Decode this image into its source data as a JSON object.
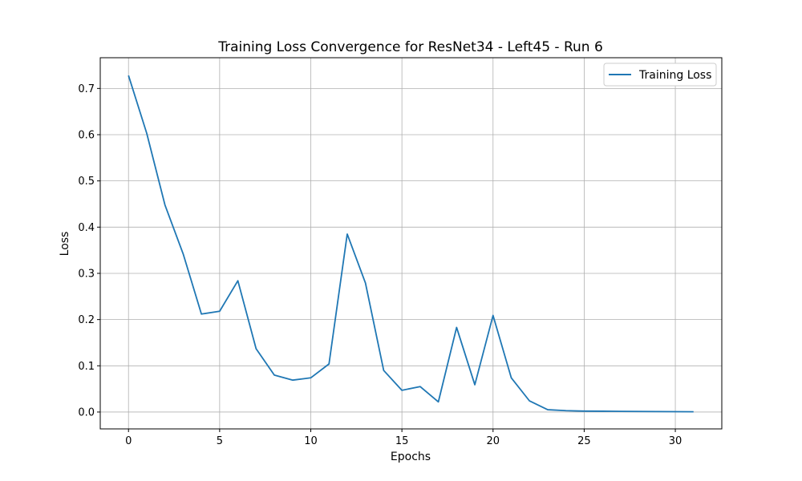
{
  "chart_data": {
    "type": "line",
    "title": "Training Loss Convergence for ResNet34 - Left45 - Run 6",
    "xlabel": "Epochs",
    "ylabel": "Loss",
    "xlim": [
      -1.55,
      32.55
    ],
    "ylim": [
      -0.0365,
      0.7665
    ],
    "xticks": [
      0,
      5,
      10,
      15,
      20,
      25,
      30
    ],
    "yticks": [
      0.0,
      0.1,
      0.2,
      0.3,
      0.4,
      0.5,
      0.6,
      0.7
    ],
    "xtick_labels": [
      "0",
      "5",
      "10",
      "15",
      "20",
      "25",
      "30"
    ],
    "ytick_labels": [
      "0.0",
      "0.1",
      "0.2",
      "0.3",
      "0.4",
      "0.5",
      "0.6",
      "0.7"
    ],
    "grid": true,
    "legend_position": "top-right",
    "series": [
      {
        "name": "Training Loss",
        "color": "#1f77b4",
        "x": [
          0,
          1,
          2,
          3,
          4,
          5,
          6,
          7,
          8,
          9,
          10,
          11,
          12,
          13,
          14,
          15,
          16,
          17,
          18,
          19,
          20,
          21,
          22,
          23,
          24,
          25,
          26,
          27,
          28,
          29,
          30,
          31
        ],
        "y": [
          0.728,
          0.603,
          0.448,
          0.342,
          0.212,
          0.218,
          0.284,
          0.137,
          0.08,
          0.069,
          0.074,
          0.104,
          0.385,
          0.279,
          0.09,
          0.047,
          0.055,
          0.022,
          0.183,
          0.059,
          0.209,
          0.074,
          0.024,
          0.005,
          0.003,
          0.002,
          0.0018,
          0.0015,
          0.0012,
          0.001,
          0.0008,
          0.0006
        ]
      }
    ]
  }
}
